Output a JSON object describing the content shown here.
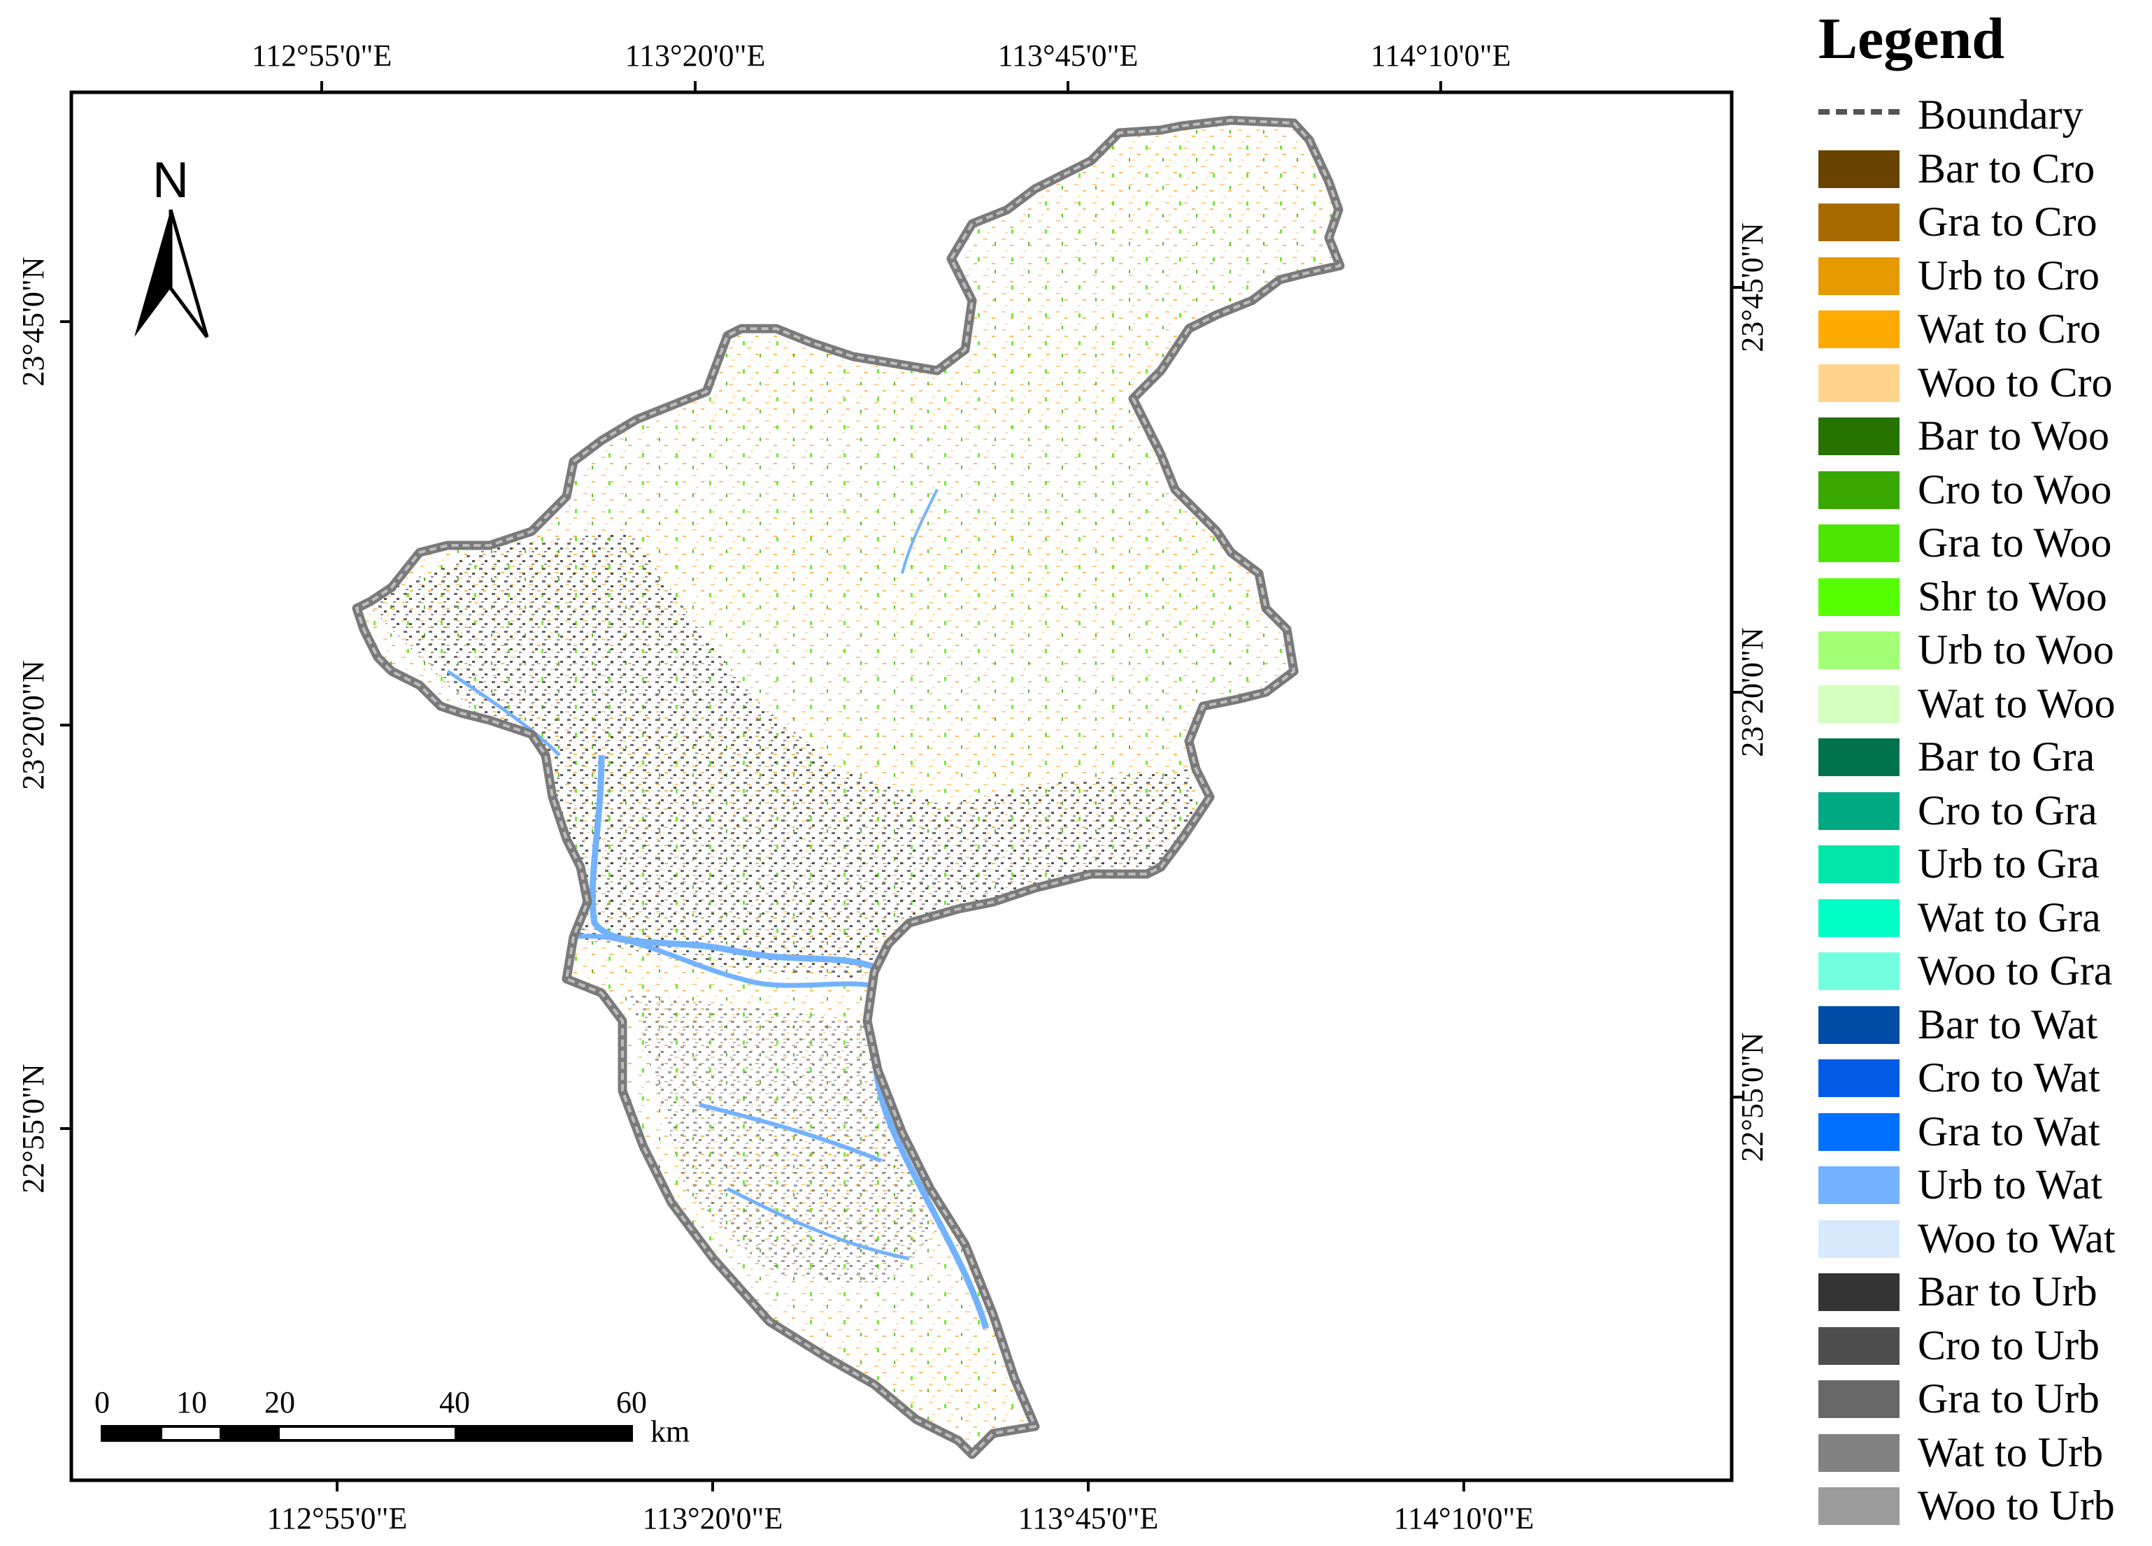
{
  "map": {
    "north_label": "N",
    "top_longitudes": [
      "112°55'0\"E",
      "113°20'0\"E",
      "113°45'0\"E",
      "114°10'0\"E"
    ],
    "bottom_longitudes": [
      "112°55'0\"E",
      "113°20'0\"E",
      "113°45'0\"E",
      "114°10'0\"E"
    ],
    "left_latitudes": [
      "23°45'0\"N",
      "23°20'0\"N",
      "22°55'0\"N"
    ],
    "right_latitudes": [
      "23°45'0\"N",
      "23°20'0\"N",
      "22°55'0\"N"
    ],
    "scale_bar": {
      "ticks": [
        "0",
        "10",
        "20",
        "40",
        "60"
      ],
      "unit": "km"
    }
  },
  "legend": {
    "title": "Legend",
    "boundary_label": "Boundary",
    "items": [
      {
        "label": "Bar to Cro",
        "color": "#6b4300"
      },
      {
        "label": "Gra to Cro",
        "color": "#a86a00"
      },
      {
        "label": "Urb to Cro",
        "color": "#e59a00"
      },
      {
        "label": "Wat to Cro",
        "color": "#ffaa00"
      },
      {
        "label": "Woo to Cro",
        "color": "#ffd48a"
      },
      {
        "label": "Bar to Woo",
        "color": "#267300"
      },
      {
        "label": "Cro to Woo",
        "color": "#38a800"
      },
      {
        "label": "Gra to Woo",
        "color": "#4ce600"
      },
      {
        "label": "Shr to Woo",
        "color": "#55ff00"
      },
      {
        "label": "Urb to Woo",
        "color": "#a3ff73"
      },
      {
        "label": "Wat to Woo",
        "color": "#d3ffbe"
      },
      {
        "label": "Bar to Gra",
        "color": "#00734c"
      },
      {
        "label": "Cro to Gra",
        "color": "#00a884"
      },
      {
        "label": "Urb to Gra",
        "color": "#00e6a9"
      },
      {
        "label": "Wat to Gra",
        "color": "#00ffc5"
      },
      {
        "label": "Woo to Gra",
        "color": "#73ffdf"
      },
      {
        "label": "Bar to Wat",
        "color": "#004da8"
      },
      {
        "label": "Cro to Wat",
        "color": "#005ce6"
      },
      {
        "label": "Gra to Wat",
        "color": "#0070ff"
      },
      {
        "label": "Urb to Wat",
        "color": "#73b2ff"
      },
      {
        "label": "Woo to Wat",
        "color": "#d6eafc"
      },
      {
        "label": "Bar to Urb",
        "color": "#343434"
      },
      {
        "label": "Cro to Urb",
        "color": "#4e4e4e"
      },
      {
        "label": "Gra to Urb",
        "color": "#686868"
      },
      {
        "label": "Wat to Urb",
        "color": "#828282"
      },
      {
        "label": "Woo to Urb",
        "color": "#9c9c9c"
      }
    ]
  }
}
